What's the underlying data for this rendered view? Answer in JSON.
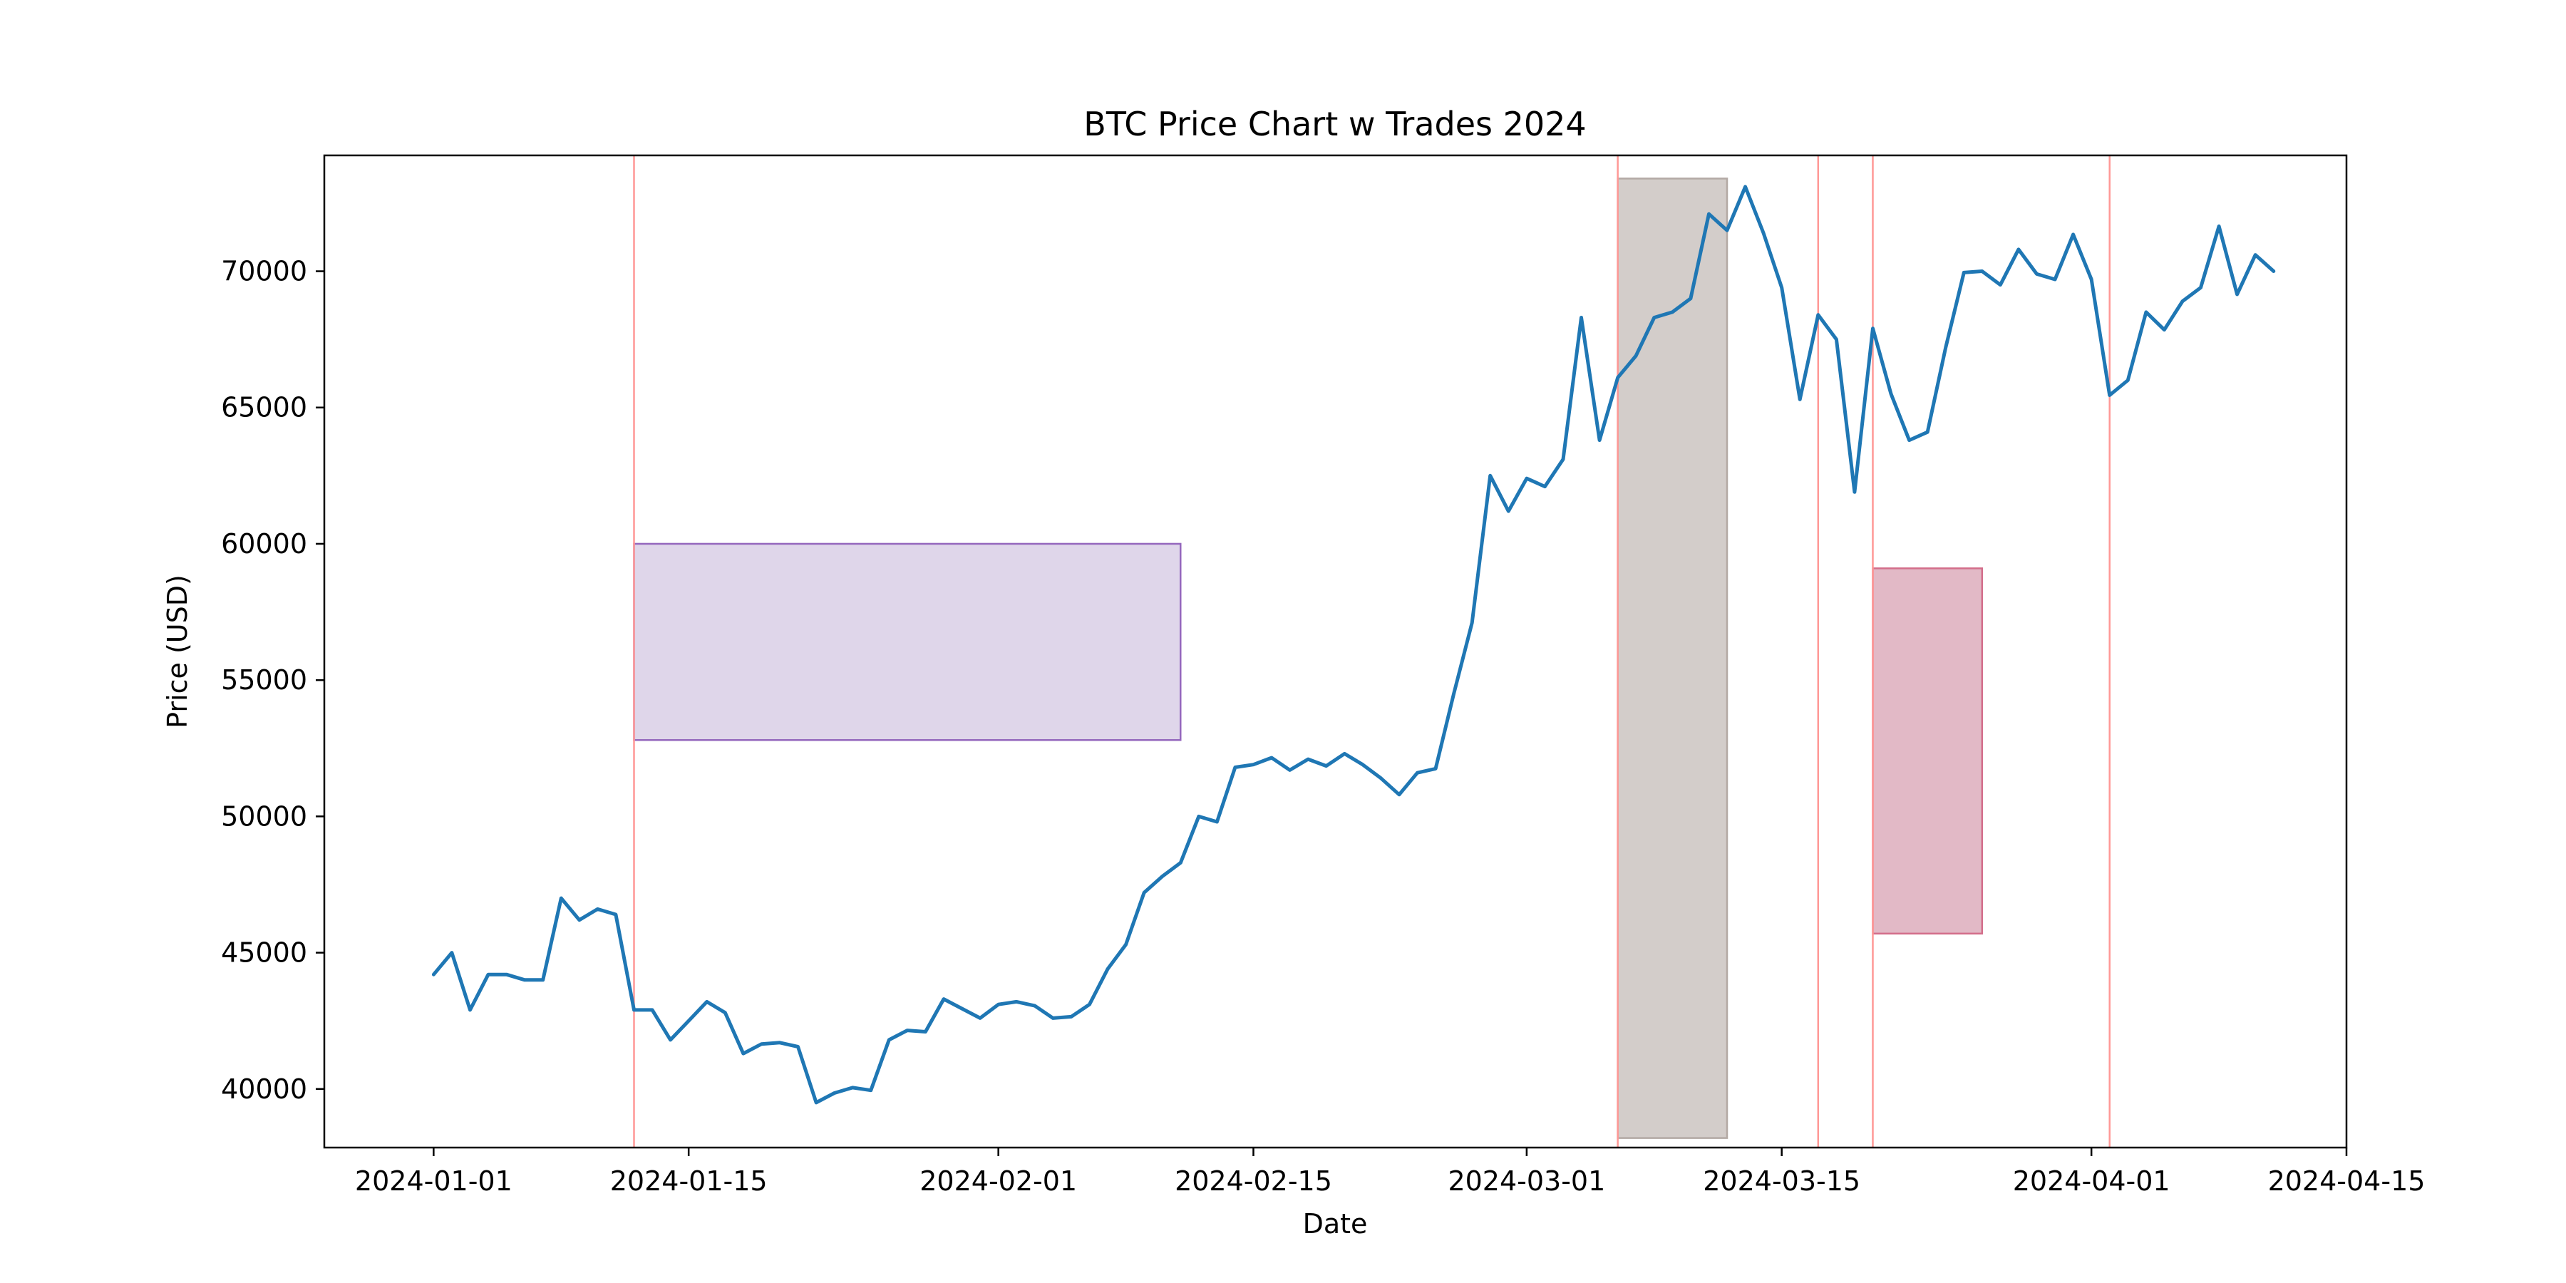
{
  "chart_data": {
    "type": "line",
    "title": "BTC Price Chart w Trades 2024",
    "xlabel": "Date",
    "ylabel": "Price (USD)",
    "xlim": [
      "2023-12-26",
      "2024-04-15"
    ],
    "ylim": [
      37850,
      74250
    ],
    "x_ticks": [
      "2024-01-01",
      "2024-01-15",
      "2024-02-01",
      "2024-02-15",
      "2024-03-01",
      "2024-03-15",
      "2024-04-01",
      "2024-04-15"
    ],
    "y_ticks": [
      40000,
      45000,
      50000,
      55000,
      60000,
      65000,
      70000
    ],
    "grid": false,
    "colors": {
      "line": "#1f77b4",
      "vline": "#ff9896",
      "box_purple": "#c4b5d9",
      "box_purple_edge": "#9467bd",
      "box_gray": "#d3cdca",
      "box_gray_edge": "#b3a9a4",
      "box_pink": "#e0b5c3",
      "box_pink_edge": "#d36d8a"
    },
    "series": [
      {
        "start_date": "2024-01-01",
        "step_days": 1,
        "values": [
          44200,
          45000,
          42900,
          44200,
          44200,
          44000,
          44000,
          47000,
          46200,
          46600,
          46400,
          42900,
          42900,
          41800,
          42500,
          43200,
          42800,
          41300,
          41650,
          41700,
          41550,
          39500,
          39850,
          40050,
          39950,
          41800,
          42150,
          42100,
          43300,
          42950,
          42600,
          43100,
          43200,
          43050,
          42600,
          42650,
          43100,
          44400,
          45300,
          47200,
          47800,
          48300,
          50000,
          49800,
          51800,
          51900,
          52150,
          51700,
          52100,
          51850,
          52300,
          51900,
          51400,
          50800,
          51600,
          51750,
          54500,
          57100,
          62500,
          61200,
          62400,
          62100,
          63100,
          68300,
          63800,
          66100,
          66900,
          68300,
          68500,
          69000,
          72100,
          71500,
          73100,
          71400,
          69400,
          65300,
          68400,
          67500,
          61900,
          67900,
          65500,
          63800,
          64100,
          67200,
          69950,
          70000,
          69500,
          70800,
          69900,
          69700,
          71350,
          69700,
          65450,
          66000,
          68500,
          67850,
          68900,
          69400,
          71650,
          69150,
          70600,
          70000
        ]
      }
    ],
    "trade_lines": [
      "2024-01-12",
      "2024-03-06",
      "2024-03-17",
      "2024-03-20",
      "2024-04-02"
    ],
    "trade_boxes": [
      {
        "x0": "2024-01-12",
        "x1": "2024-02-11",
        "y0": 52800,
        "y1": 60000,
        "color": "box_purple",
        "edge": "box_purple_edge",
        "opacity": 0.55
      },
      {
        "x0": "2024-03-06",
        "x1": "2024-03-12",
        "y0": 38200,
        "y1": 73400,
        "color": "box_gray",
        "edge": "box_gray_edge",
        "opacity": 1.0
      },
      {
        "x0": "2024-03-20",
        "x1": "2024-03-26",
        "y0": 45700,
        "y1": 59100,
        "color": "box_pink",
        "edge": "box_pink_edge",
        "opacity": 0.95
      }
    ]
  }
}
